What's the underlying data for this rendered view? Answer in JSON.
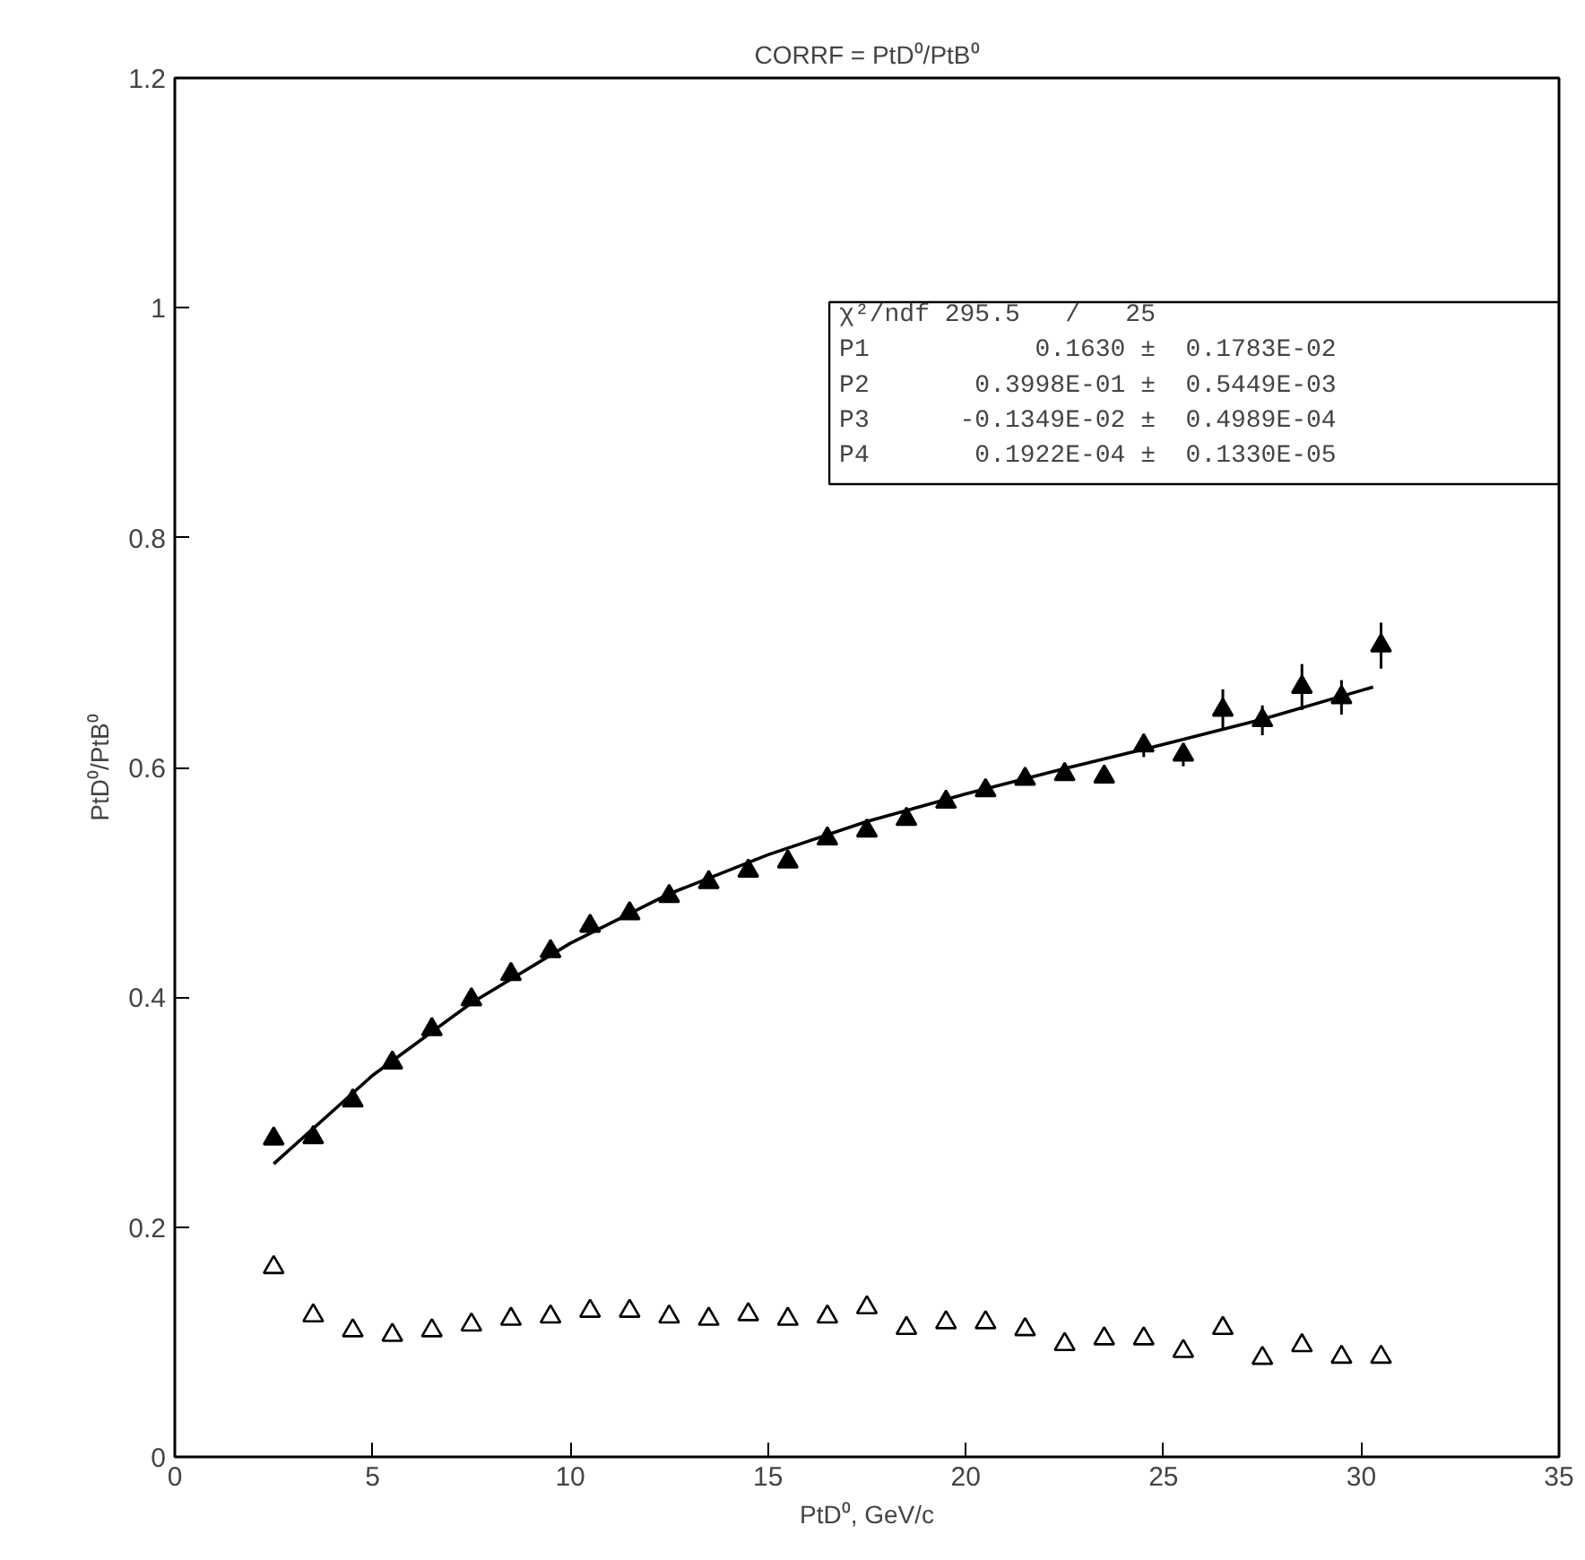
{
  "chart_data": {
    "type": "scatter",
    "title": "CORRF = PtD⁰/PtB⁰",
    "xlabel": "PtD⁰, GeV/c",
    "ylabel": "PtD⁰/PtB⁰",
    "x": [
      2.5,
      3.5,
      4.5,
      5.5,
      6.5,
      7.5,
      8.5,
      9.5,
      10.5,
      11.5,
      12.5,
      13.5,
      14.5,
      15.5,
      16.5,
      17.5,
      18.5,
      19.5,
      20.5,
      21.5,
      22.5,
      23.5,
      24.5,
      25.5,
      26.5,
      27.5,
      28.5,
      29.5,
      30.5
    ],
    "series": [
      {
        "marker": "triangle",
        "color": "#000000",
        "values": [
          0.277,
          0.278,
          0.31,
          0.343,
          0.372,
          0.398,
          0.42,
          0.44,
          0.462,
          0.473,
          0.488,
          0.5,
          0.51,
          0.518,
          0.538,
          0.545,
          0.555,
          0.57,
          0.58,
          0.59,
          0.594,
          0.592,
          0.619,
          0.611,
          0.65,
          0.641,
          0.67,
          0.661,
          0.706
        ],
        "errors": [
          null,
          null,
          null,
          null,
          null,
          null,
          null,
          null,
          null,
          null,
          null,
          null,
          null,
          null,
          null,
          null,
          null,
          null,
          null,
          null,
          null,
          null,
          0.01,
          0.01,
          0.018,
          0.013,
          0.02,
          0.015,
          0.02
        ]
      },
      {
        "marker": "triangle_open",
        "color": "#000000",
        "values": [
          0.165,
          0.123,
          0.11,
          0.106,
          0.11,
          0.115,
          0.12,
          0.122,
          0.127,
          0.127,
          0.122,
          0.12,
          0.124,
          0.12,
          0.122,
          0.13,
          0.112,
          0.117,
          0.117,
          0.111,
          0.098,
          0.103,
          0.103,
          0.092,
          0.112,
          0.086,
          0.097,
          0.087,
          0.087
        ]
      },
      {
        "type": "line",
        "marker": "none",
        "line_style": "solid",
        "color": "#000000",
        "x": [
          2.5,
          5,
          7.5,
          10,
          12.5,
          15,
          17.5,
          20,
          22.5,
          25,
          27.5,
          30,
          30.3
        ],
        "values": [
          0.255,
          0.332,
          0.395,
          0.447,
          0.49,
          0.524,
          0.553,
          0.577,
          0.599,
          0.62,
          0.642,
          0.667,
          0.67
        ]
      }
    ],
    "xlim": [
      0,
      35
    ],
    "ylim": [
      0,
      1.2
    ],
    "xticks": [
      0,
      5,
      10,
      15,
      20,
      25,
      30,
      35
    ],
    "yticks": [
      0,
      0.2,
      0.4,
      0.6,
      0.8,
      1,
      1.2
    ],
    "grid": false,
    "annotations": [
      "χ²/ndf 295.5   /   25",
      "P1           0.1630 ±  0.1783E-02",
      "P2       0.3998E-01 ±  0.5449E-03",
      "P3      -0.1349E-02 ±  0.4989E-04",
      "P4       0.1922E-04 ±  0.1330E-05"
    ]
  }
}
